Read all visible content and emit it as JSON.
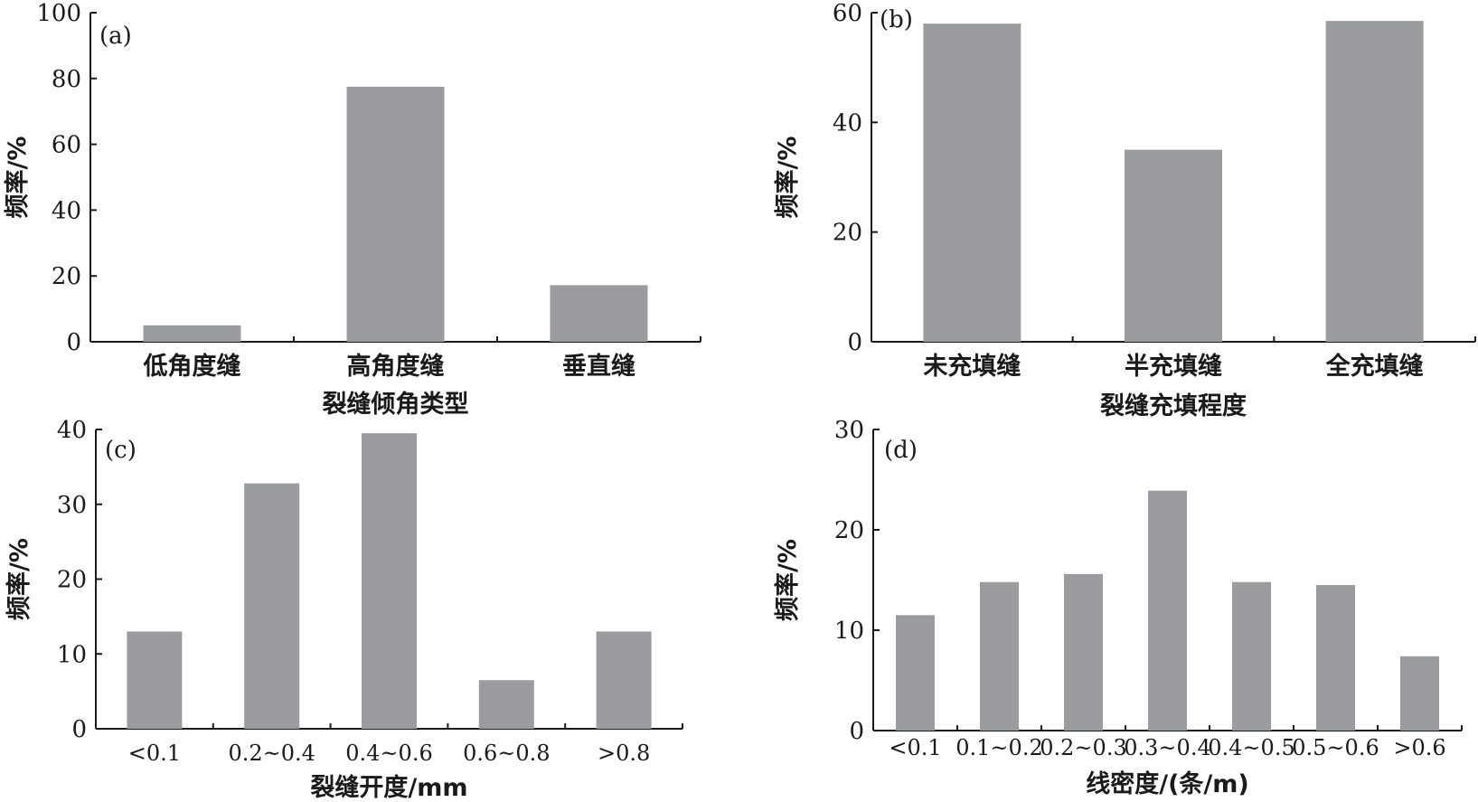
{
  "chart_data": [
    {
      "id": "a",
      "type": "bar",
      "panel_label": "(a)",
      "categories": [
        "低角度缝",
        "高角度缝",
        "垂直缝"
      ],
      "values": [
        5,
        77.5,
        17.2
      ],
      "xlabel": "裂缝倾角类型",
      "ylabel": "频率/%",
      "ylim": [
        0,
        100
      ],
      "yticks": [
        0,
        20,
        40,
        60,
        80,
        100
      ],
      "grid": false,
      "color": "#9b9ca0"
    },
    {
      "id": "b",
      "type": "bar",
      "panel_label": "(b)",
      "categories": [
        "未充填缝",
        "半充填缝",
        "全充填缝"
      ],
      "values": [
        58,
        35,
        58.5
      ],
      "xlabel": "裂缝充填程度",
      "ylabel": "频率/%",
      "ylim": [
        0,
        60
      ],
      "yticks": [
        0,
        20,
        40,
        60
      ],
      "grid": false,
      "color": "#9b9ca0"
    },
    {
      "id": "c",
      "type": "bar",
      "panel_label": "(c)",
      "categories": [
        "<0.1",
        "0.2~0.4",
        "0.4~0.6",
        "0.6~0.8",
        ">0.8"
      ],
      "values": [
        13,
        32.8,
        39.5,
        6.5,
        13
      ],
      "xlabel": "裂缝开度/mm",
      "ylabel": "频率/%",
      "ylim": [
        0,
        40
      ],
      "yticks": [
        0,
        10,
        20,
        30,
        40
      ],
      "grid": false,
      "color": "#9b9ca0"
    },
    {
      "id": "d",
      "type": "bar",
      "panel_label": "(d)",
      "categories": [
        "<0.1",
        "0.1~0.2",
        "0.2~0.3",
        "0.3~0.4",
        "0.4~0.5",
        "0.5~0.6",
        ">0.6"
      ],
      "values": [
        11.5,
        14.8,
        15.6,
        23.9,
        14.8,
        14.5,
        7.4
      ],
      "xlabel": "线密度/(条/m)",
      "ylabel": "频率/%",
      "ylim": [
        0,
        30
      ],
      "yticks": [
        0,
        10,
        20,
        30
      ],
      "grid": false,
      "color": "#9b9ca0"
    }
  ]
}
